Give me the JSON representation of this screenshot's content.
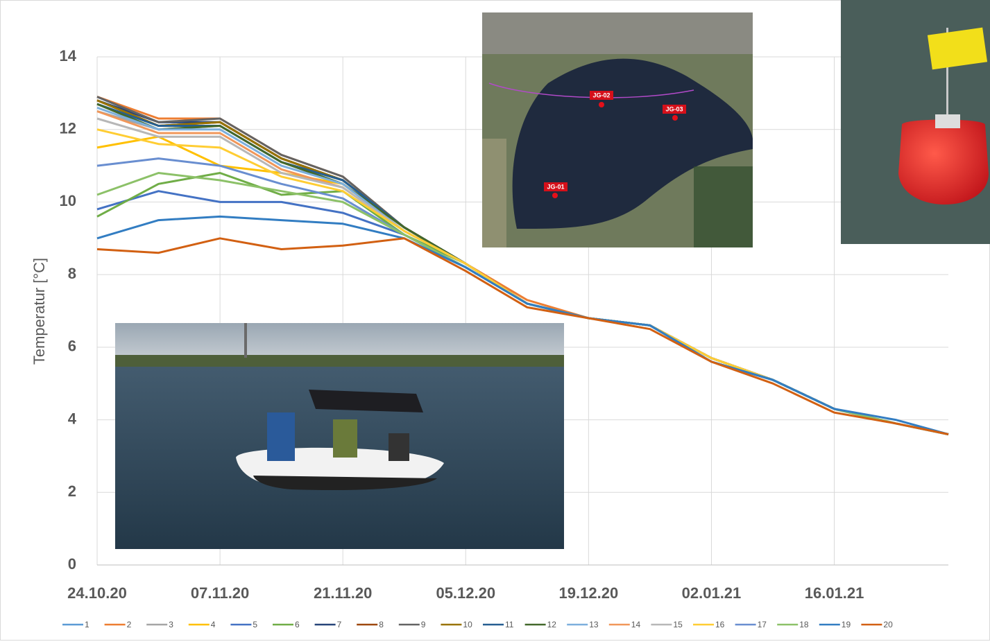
{
  "chart_data": {
    "type": "line",
    "ylabel": "Temperatur [°C]",
    "x": [
      "24.10.20",
      "31.10.20",
      "07.11.20",
      "14.11.20",
      "21.11.20",
      "28.11.20",
      "05.12.20",
      "12.12.20",
      "19.12.20",
      "26.12.20",
      "02.01.21",
      "09.01.21",
      "16.01.21",
      "23.01.21",
      "29.01.21"
    ],
    "xlim": [
      "24.10.20",
      "29.01.21"
    ],
    "xticks": [
      "24.10.20",
      "07.11.20",
      "21.11.20",
      "05.12.20",
      "19.12.20",
      "02.01.21",
      "16.01.21"
    ],
    "ylim": [
      0,
      14
    ],
    "yticks": [
      0,
      2,
      4,
      6,
      8,
      10,
      12,
      14
    ],
    "grid": true,
    "legend": "bottom",
    "series": [
      {
        "name": "1",
        "color": "#5b9bd5",
        "values": [
          12.9,
          12.2,
          12.2,
          11.2,
          10.6,
          9.3,
          8.3,
          7.2,
          6.8,
          6.6,
          5.7,
          5.1,
          4.3,
          3.9,
          3.6
        ]
      },
      {
        "name": "2",
        "color": "#ed7d31",
        "values": [
          12.9,
          12.3,
          12.3,
          11.3,
          10.7,
          9.3,
          8.3,
          7.3,
          6.8,
          6.6,
          5.7,
          5.1,
          4.3,
          3.9,
          3.6
        ]
      },
      {
        "name": "3",
        "color": "#a5a5a5",
        "values": [
          12.5,
          12.0,
          12.1,
          11.1,
          10.6,
          9.3,
          8.3,
          7.2,
          6.8,
          6.6,
          5.7,
          5.1,
          4.3,
          3.9,
          3.6
        ]
      },
      {
        "name": "4",
        "color": "#ffc000",
        "values": [
          11.5,
          11.8,
          11.0,
          10.8,
          10.5,
          9.2,
          8.3,
          7.2,
          6.8,
          6.6,
          5.7,
          5.1,
          4.3,
          3.9,
          3.6
        ]
      },
      {
        "name": "5",
        "color": "#4472c4",
        "values": [
          9.8,
          10.3,
          10.0,
          10.0,
          9.7,
          9.1,
          8.2,
          7.2,
          6.8,
          6.6,
          5.6,
          5.1,
          4.3,
          3.9,
          3.6
        ]
      },
      {
        "name": "6",
        "color": "#70ad47",
        "values": [
          9.6,
          10.5,
          10.8,
          10.2,
          10.3,
          9.1,
          8.3,
          7.2,
          6.8,
          6.6,
          5.7,
          5.1,
          4.3,
          3.9,
          3.6
        ]
      },
      {
        "name": "7",
        "color": "#264478",
        "values": [
          12.8,
          12.2,
          12.2,
          11.2,
          10.6,
          9.3,
          8.3,
          7.2,
          6.8,
          6.6,
          5.7,
          5.1,
          4.3,
          3.9,
          3.6
        ]
      },
      {
        "name": "8",
        "color": "#9e480e",
        "values": [
          12.8,
          12.1,
          12.2,
          11.2,
          10.6,
          9.3,
          8.3,
          7.2,
          6.8,
          6.6,
          5.7,
          5.1,
          4.3,
          3.9,
          3.6
        ]
      },
      {
        "name": "9",
        "color": "#636363",
        "values": [
          12.9,
          12.2,
          12.3,
          11.3,
          10.7,
          9.3,
          8.3,
          7.2,
          6.8,
          6.6,
          5.7,
          5.1,
          4.3,
          3.9,
          3.6
        ]
      },
      {
        "name": "10",
        "color": "#997300",
        "values": [
          12.8,
          12.1,
          12.2,
          11.2,
          10.6,
          9.3,
          8.3,
          7.2,
          6.8,
          6.6,
          5.7,
          5.1,
          4.3,
          3.9,
          3.6
        ]
      },
      {
        "name": "11",
        "color": "#255e91",
        "values": [
          12.7,
          12.1,
          12.1,
          11.1,
          10.6,
          9.3,
          8.3,
          7.2,
          6.8,
          6.6,
          5.7,
          5.1,
          4.3,
          3.9,
          3.6
        ]
      },
      {
        "name": "12",
        "color": "#43682b",
        "values": [
          12.7,
          12.0,
          12.1,
          11.1,
          10.5,
          9.3,
          8.3,
          7.2,
          6.8,
          6.6,
          5.7,
          5.1,
          4.3,
          3.9,
          3.6
        ]
      },
      {
        "name": "13",
        "color": "#7cafdd",
        "values": [
          12.6,
          12.0,
          12.0,
          11.0,
          10.5,
          9.2,
          8.3,
          7.2,
          6.8,
          6.6,
          5.7,
          5.1,
          4.3,
          3.9,
          3.6
        ]
      },
      {
        "name": "14",
        "color": "#f1975a",
        "values": [
          12.5,
          11.9,
          11.9,
          10.9,
          10.4,
          9.2,
          8.3,
          7.2,
          6.8,
          6.6,
          5.7,
          5.1,
          4.3,
          3.9,
          3.6
        ]
      },
      {
        "name": "15",
        "color": "#b7b7b7",
        "values": [
          12.3,
          11.8,
          11.8,
          10.8,
          10.4,
          9.2,
          8.3,
          7.2,
          6.8,
          6.6,
          5.7,
          5.1,
          4.3,
          3.9,
          3.6
        ]
      },
      {
        "name": "16",
        "color": "#ffcd33",
        "values": [
          12.0,
          11.6,
          11.5,
          10.7,
          10.3,
          9.2,
          8.3,
          7.2,
          6.8,
          6.6,
          5.7,
          5.1,
          4.3,
          3.9,
          3.6
        ]
      },
      {
        "name": "17",
        "color": "#698ed0",
        "values": [
          11.0,
          11.2,
          11.0,
          10.5,
          10.1,
          9.1,
          8.2,
          7.2,
          6.8,
          6.6,
          5.6,
          5.1,
          4.3,
          3.9,
          3.6
        ]
      },
      {
        "name": "18",
        "color": "#8cc168",
        "values": [
          10.2,
          10.8,
          10.6,
          10.3,
          10.0,
          9.1,
          8.2,
          7.2,
          6.8,
          6.6,
          5.6,
          5.1,
          4.3,
          3.9,
          3.6
        ]
      },
      {
        "name": "19",
        "color": "#327dc2",
        "values": [
          9.0,
          9.5,
          9.6,
          9.5,
          9.4,
          9.0,
          8.2,
          7.2,
          6.8,
          6.6,
          5.6,
          5.1,
          4.3,
          4.0,
          3.6
        ]
      },
      {
        "name": "20",
        "color": "#d26012",
        "values": [
          8.7,
          8.6,
          9.0,
          8.7,
          8.8,
          9.0,
          8.1,
          7.1,
          6.8,
          6.5,
          5.6,
          5.0,
          4.2,
          3.9,
          3.6
        ]
      }
    ]
  },
  "insets": {
    "map_labels": [
      "JG-01",
      "JG-02",
      "JG-03"
    ]
  }
}
